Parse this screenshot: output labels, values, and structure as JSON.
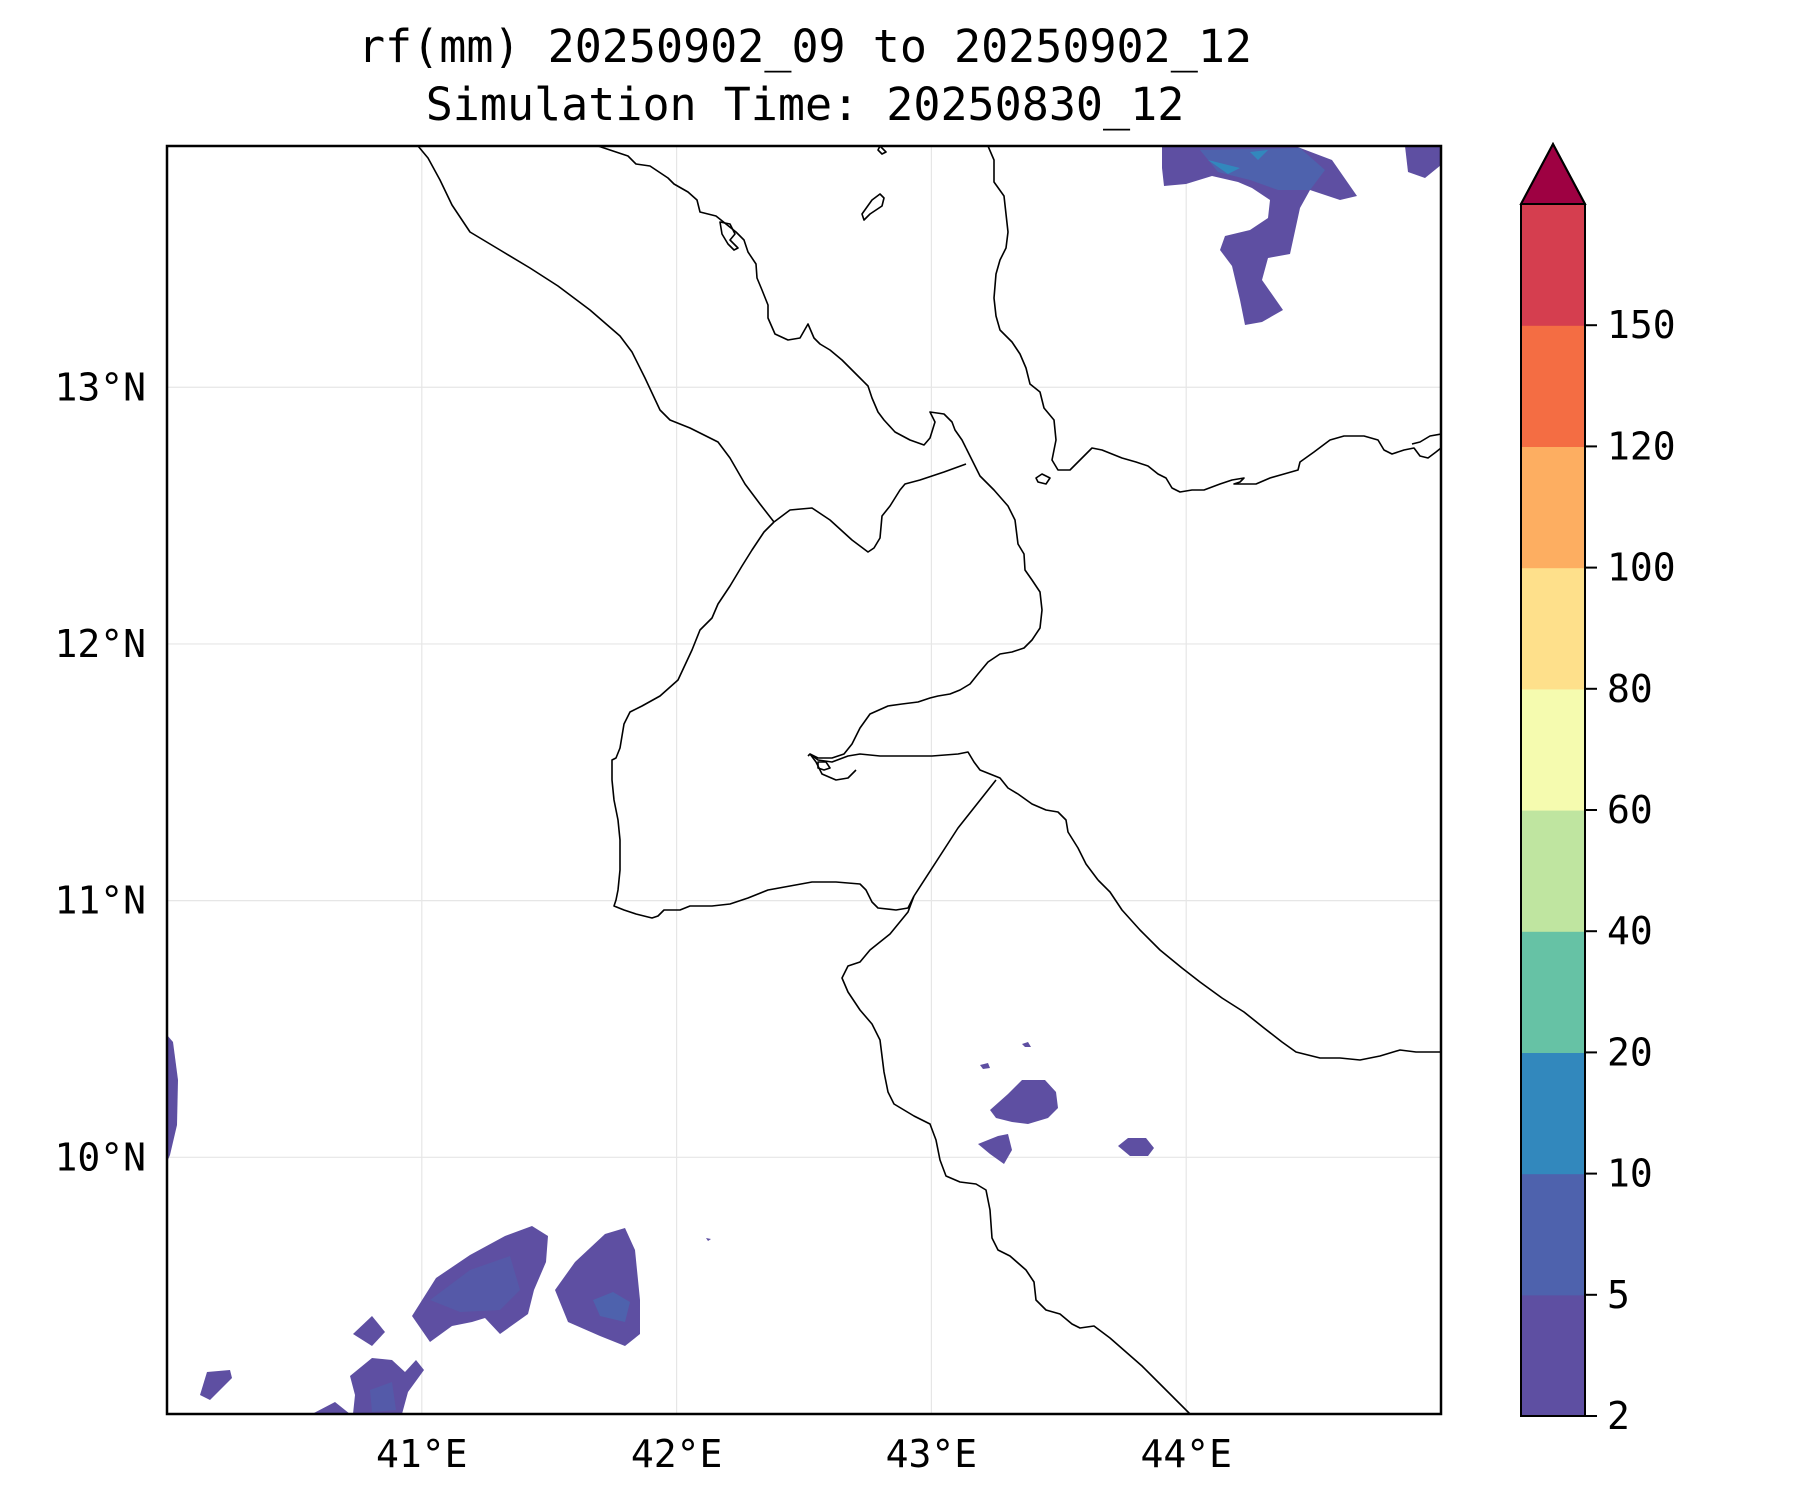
{
  "title": {
    "line1": "rf(mm) 20250902_09 to 20250902_12",
    "line2": "Simulation Time: 20250830_12"
  },
  "map": {
    "projection": "lat-lon",
    "lon_range": [
      40.0,
      45.0
    ],
    "lat_range": [
      9.0,
      13.94
    ],
    "lon_ticks": [
      {
        "value": 41,
        "label": "41°E"
      },
      {
        "value": 42,
        "label": "42°E"
      },
      {
        "value": 43,
        "label": "43°E"
      },
      {
        "value": 44,
        "label": "44°E"
      }
    ],
    "lat_ticks": [
      {
        "value": 13,
        "label": "13°N"
      },
      {
        "value": 12,
        "label": "12°N"
      },
      {
        "value": 11,
        "label": "11°N"
      },
      {
        "value": 10,
        "label": "10°N"
      }
    ],
    "grid": true,
    "grid_color": "#e6e6e6",
    "coastline_color": "#000000"
  },
  "colorbar": {
    "levels": [
      2,
      5,
      10,
      20,
      40,
      60,
      80,
      100,
      120,
      150
    ],
    "labels": [
      "2",
      "5",
      "10",
      "20",
      "40",
      "60",
      "80",
      "100",
      "120",
      "150"
    ],
    "colors": [
      "#5e4fa2",
      "#4e62ad",
      "#3288bd",
      "#66c2a5",
      "#bfe5a0",
      "#f5fbaf",
      "#fee08b",
      "#fdae61",
      "#f46d43",
      "#d53e4f"
    ],
    "extend_color": "#9e0142",
    "extend": "max"
  }
}
